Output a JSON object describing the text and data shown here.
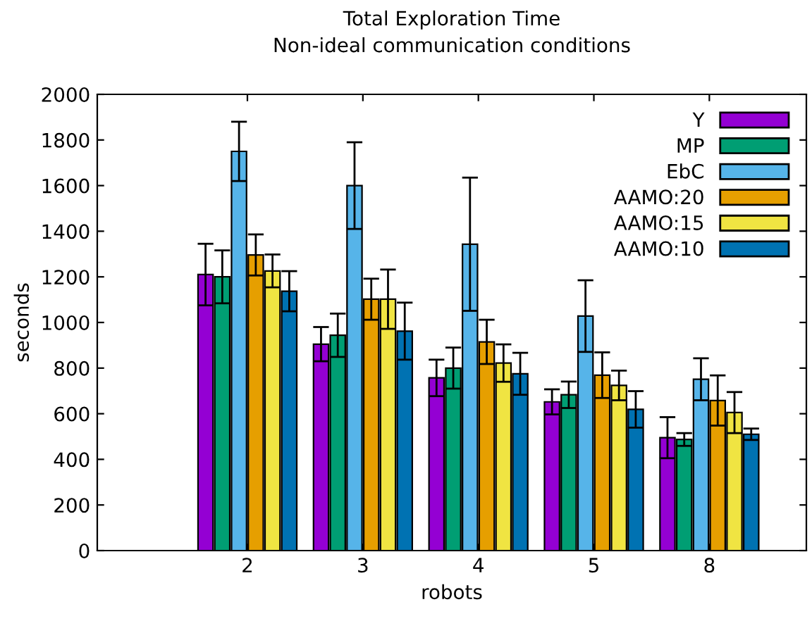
{
  "chart_data": {
    "type": "bar",
    "title": "Total Exploration Time",
    "subtitle": "Non-ideal communication conditions",
    "xlabel": "robots",
    "ylabel": "seconds",
    "categories": [
      "2",
      "3",
      "4",
      "5",
      "8"
    ],
    "series": [
      {
        "name": "Y",
        "color": "#9400d3",
        "values": [
          1210,
          905,
          757,
          652,
          495
        ],
        "errors": [
          135,
          75,
          80,
          55,
          90
        ]
      },
      {
        "name": "MP",
        "color": "#009e73",
        "values": [
          1200,
          944,
          800,
          683,
          487
        ],
        "errors": [
          116,
          95,
          90,
          58,
          28
        ]
      },
      {
        "name": "EbC",
        "color": "#56b4e9",
        "values": [
          1750,
          1600,
          1343,
          1028,
          751
        ],
        "errors": [
          130,
          190,
          292,
          157,
          92
        ]
      },
      {
        "name": "AAMO:20",
        "color": "#e69f00",
        "values": [
          1296,
          1102,
          915,
          769,
          658
        ],
        "errors": [
          90,
          90,
          97,
          100,
          110
        ]
      },
      {
        "name": "AAMO:15",
        "color": "#f0e442",
        "values": [
          1226,
          1102,
          822,
          724,
          605
        ],
        "errors": [
          72,
          130,
          82,
          65,
          90
        ]
      },
      {
        "name": "AAMO:10",
        "color": "#0072b2",
        "values": [
          1137,
          962,
          775,
          619,
          510
        ],
        "errors": [
          88,
          125,
          92,
          80,
          25
        ]
      }
    ],
    "ylim": [
      0,
      2000
    ],
    "yticks": [
      0,
      200,
      400,
      600,
      800,
      1000,
      1200,
      1400,
      1600,
      1800,
      2000
    ],
    "grid": false,
    "legend": "top right"
  }
}
